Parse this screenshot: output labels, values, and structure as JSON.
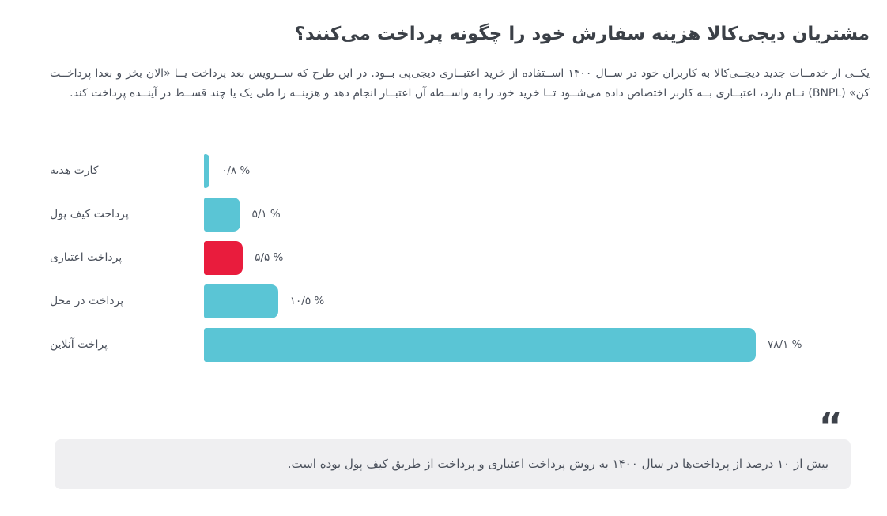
{
  "page": {
    "title": "مشتریان دیجی‌کالا هزینه سفارش خود را چگونه پرداخت می‌کنند؟",
    "intro": "یکــی از خدمــات جدید دیجــی‌کالا به کاربران خود در ســال ۱۴۰۰ اســتفاده از خرید اعتبــاری دیجی‌پی بــود. در این طرح که ســرویس بعد پرداخت یــا «الان بخر و بعدا پرداخــت کن» (BNPL) نــام دارد، اعتبــاری بــه کاربر اختصاص داده می‌شــود تــا خرید خود را به واســطه آن اعتبــار انجام دهد و هزینــه را طی یک یا چند قســط در آینــده پرداخت کند."
  },
  "chart_data": {
    "type": "bar",
    "orientation": "horizontal",
    "title": "مشتریان دیجی‌کالا هزینه سفارش خود را چگونه پرداخت می‌کنند؟",
    "categories": [
      "کارت هدیه",
      "پرداخت کیف پول",
      "پرداخت اعتباری",
      "پرداخت در محل",
      "پراخت آنلاین"
    ],
    "values": [
      0.8,
      5.1,
      5.5,
      10.5,
      78.1
    ],
    "value_labels": [
      "۰/۸ %",
      "۵/۱ %",
      "۵/۵ %",
      "۱۰/۵ %",
      "۷۸/۱ %"
    ],
    "unit": "%",
    "xlim": [
      0,
      78.1
    ],
    "grid": false,
    "legend": "none",
    "colors": [
      "#5ac5d5",
      "#5ac5d5",
      "#e91c3d",
      "#5ac5d5",
      "#5ac5d5"
    ],
    "bar_color_default": "#5ac5d5",
    "bar_color_highlight": "#e91c3d",
    "highlighted_category": "پرداخت اعتباری"
  },
  "quote": {
    "icon_glyph": "“",
    "text": "بیش از ۱۰ درصد از پرداخت‌ها در سال ۱۴۰۰ به روش پرداخت اعتباری و پرداخت از طریق کیف پول بوده است."
  },
  "colors": {
    "title_text": "#3b4047",
    "body_text": "#4b515c",
    "quote_box_bg": "#efeff1",
    "accent_teal": "#5ac5d5",
    "accent_red": "#e91c3d",
    "background": "#ffffff"
  }
}
